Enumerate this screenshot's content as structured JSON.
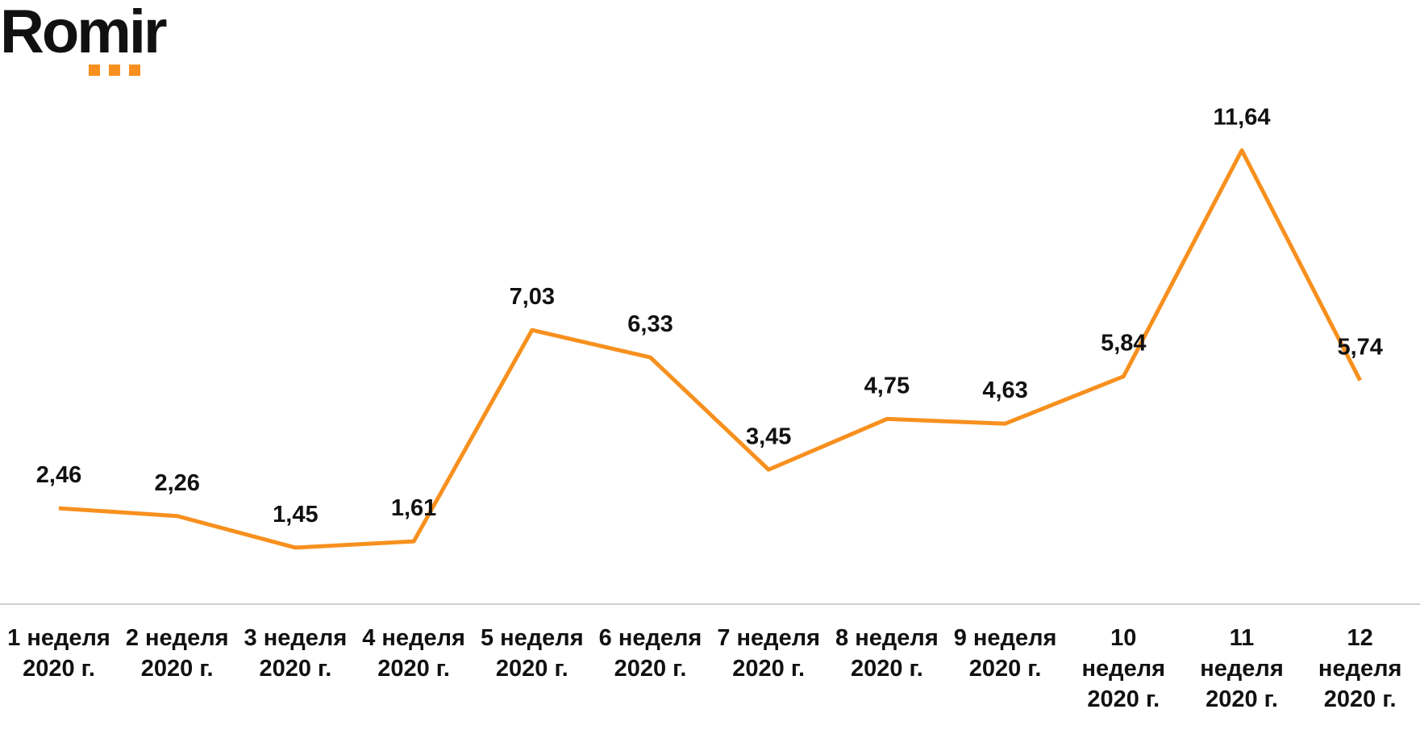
{
  "logo": "Romir",
  "chart_data": {
    "type": "line",
    "categories": [
      "1 неделя 2020 г.",
      "2 неделя 2020 г.",
      "3 неделя 2020 г.",
      "4 неделя 2020 г.",
      "5 неделя 2020 г.",
      "6 неделя 2020 г.",
      "7 неделя 2020 г.",
      "8 неделя 2020 г.",
      "9 неделя 2020 г.",
      "10 неделя 2020 г.",
      "11 неделя 2020 г.",
      "12 неделя 2020 г."
    ],
    "values": [
      2.46,
      2.26,
      1.45,
      1.61,
      7.03,
      6.33,
      3.45,
      4.75,
      4.63,
      5.84,
      11.64,
      5.74
    ],
    "value_labels": [
      "2,46",
      "2,26",
      "1,45",
      "1,61",
      "7,03",
      "6,33",
      "3,45",
      "4,75",
      "4,63",
      "5,84",
      "11,64",
      "5,74"
    ],
    "color": "#f7901e",
    "ylim": [
      0,
      12
    ]
  }
}
